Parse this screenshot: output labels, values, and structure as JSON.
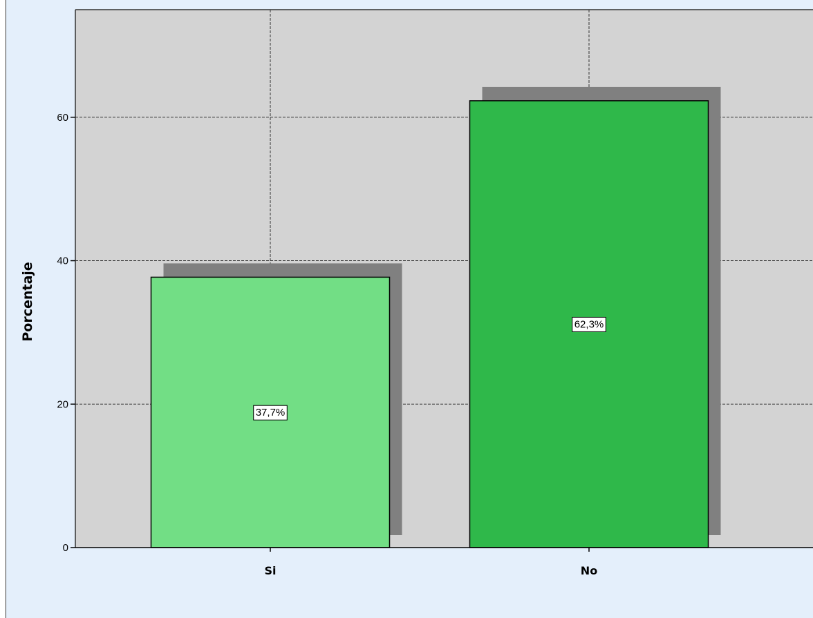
{
  "chart_data": {
    "type": "bar",
    "categories": [
      "Si",
      "No"
    ],
    "values": [
      37.7,
      62.3
    ],
    "data_labels": [
      "37,7%",
      "62,3%"
    ],
    "colors": [
      "#72de85",
      "#2fb84a"
    ],
    "shadow_color": "#808080",
    "plot_background": "#d3d3d3",
    "frame_background": "#e4effb",
    "title": "",
    "xlabel": "",
    "ylabel": "Porcentaje",
    "ylim": [
      0,
      75
    ],
    "yticks": [
      0,
      20,
      40,
      60
    ],
    "ytick_labels": [
      "0",
      "20",
      "40",
      "60"
    ],
    "grid": true,
    "legend": "none"
  }
}
